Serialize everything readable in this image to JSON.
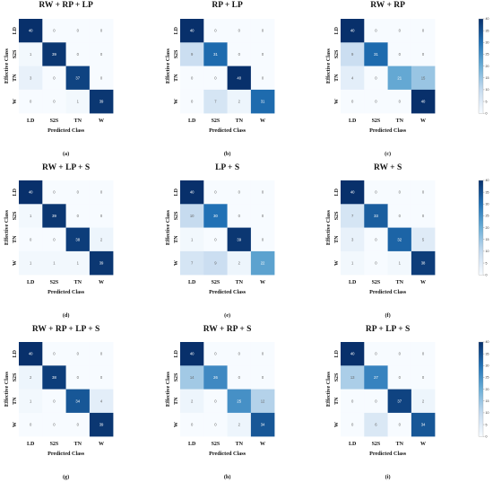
{
  "figure": {
    "class_labels": [
      "LD",
      "S2S",
      "TN",
      "W"
    ],
    "xlabel": "Predicted Class",
    "ylabel": "Effective Class",
    "colorbar_ticks": [
      0,
      5,
      10,
      15,
      20,
      25,
      30,
      35,
      40
    ]
  },
  "chart_data": [
    {
      "type": "heatmap",
      "title": "RW + RP + LP",
      "caption": "(a)",
      "xlabel": "Predicted Class",
      "ylabel": "Effective Class",
      "categories": [
        "LD",
        "S2S",
        "TN",
        "W"
      ],
      "values": [
        [
          40,
          0,
          0,
          0
        ],
        [
          1,
          39,
          0,
          0
        ],
        [
          3,
          0,
          37,
          0
        ],
        [
          0,
          0,
          1,
          39
        ]
      ],
      "vmin": 0,
      "vmax": 40
    },
    {
      "type": "heatmap",
      "title": "RP + LP",
      "caption": "(b)",
      "xlabel": "Predicted Class",
      "ylabel": "Effective Class",
      "categories": [
        "LD",
        "S2S",
        "TN",
        "W"
      ],
      "values": [
        [
          40,
          0,
          0,
          0
        ],
        [
          9,
          31,
          0,
          0
        ],
        [
          0,
          0,
          40,
          0
        ],
        [
          0,
          7,
          2,
          31
        ]
      ],
      "vmin": 0,
      "vmax": 40
    },
    {
      "type": "heatmap",
      "title": "RW + RP",
      "caption": "(c)",
      "xlabel": "Predicted Class",
      "ylabel": "Effective Class",
      "categories": [
        "LD",
        "S2S",
        "TN",
        "W"
      ],
      "values": [
        [
          40,
          0,
          0,
          0
        ],
        [
          9,
          31,
          0,
          0
        ],
        [
          4,
          0,
          21,
          15
        ],
        [
          0,
          0,
          0,
          40
        ]
      ],
      "vmin": 0,
      "vmax": 40
    },
    {
      "type": "heatmap",
      "title": "RW + LP + S",
      "caption": "(d)",
      "xlabel": "Predicted Class",
      "ylabel": "Effective Class",
      "categories": [
        "LD",
        "S2S",
        "TN",
        "W"
      ],
      "values": [
        [
          40,
          0,
          0,
          0
        ],
        [
          1,
          39,
          0,
          0
        ],
        [
          0,
          0,
          38,
          2
        ],
        [
          1,
          1,
          1,
          39
        ]
      ],
      "vmin": 0,
      "vmax": 40
    },
    {
      "type": "heatmap",
      "title": "LP + S",
      "caption": "(e)",
      "xlabel": "Predicted Class",
      "ylabel": "Effective Class",
      "categories": [
        "LD",
        "S2S",
        "TN",
        "W"
      ],
      "values": [
        [
          40,
          0,
          0,
          0
        ],
        [
          10,
          30,
          0,
          0
        ],
        [
          1,
          0,
          39,
          0
        ],
        [
          7,
          9,
          2,
          22
        ]
      ],
      "vmin": 0,
      "vmax": 40
    },
    {
      "type": "heatmap",
      "title": "RW + S",
      "caption": "(f)",
      "xlabel": "Predicted Class",
      "ylabel": "Effective Class",
      "categories": [
        "LD",
        "S2S",
        "TN",
        "W"
      ],
      "values": [
        [
          40,
          0,
          0,
          0
        ],
        [
          7,
          33,
          0,
          0
        ],
        [
          3,
          0,
          32,
          5
        ],
        [
          1,
          0,
          1,
          38
        ]
      ],
      "vmin": 0,
      "vmax": 40
    },
    {
      "type": "heatmap",
      "title": "RW + RP + LP + S",
      "caption": "(g)",
      "xlabel": "Predicted Class",
      "ylabel": "Effective Class",
      "categories": [
        "LD",
        "S2S",
        "TN",
        "W"
      ],
      "values": [
        [
          40,
          0,
          0,
          0
        ],
        [
          2,
          38,
          0,
          0
        ],
        [
          1,
          0,
          34,
          4
        ],
        [
          0,
          0,
          0,
          39
        ]
      ],
      "vmin": 0,
      "vmax": 40
    },
    {
      "type": "heatmap",
      "title": "RW + RP + S",
      "caption": "(h)",
      "xlabel": "Predicted Class",
      "ylabel": "Effective Class",
      "categories": [
        "LD",
        "S2S",
        "TN",
        "W"
      ],
      "values": [
        [
          40,
          0,
          0,
          0
        ],
        [
          14,
          26,
          0,
          0
        ],
        [
          2,
          0,
          25,
          12
        ],
        [
          0,
          0,
          2,
          34
        ]
      ],
      "vmin": 0,
      "vmax": 40
    },
    {
      "type": "heatmap",
      "title": "RP + LP + S",
      "caption": "(i)",
      "xlabel": "Predicted Class",
      "ylabel": "Effective Class",
      "categories": [
        "LD",
        "S2S",
        "TN",
        "W"
      ],
      "values": [
        [
          40,
          0,
          0,
          0
        ],
        [
          13,
          27,
          0,
          0
        ],
        [
          0,
          0,
          37,
          2
        ],
        [
          0,
          6,
          0,
          34
        ]
      ],
      "vmin": 0,
      "vmax": 40
    }
  ]
}
